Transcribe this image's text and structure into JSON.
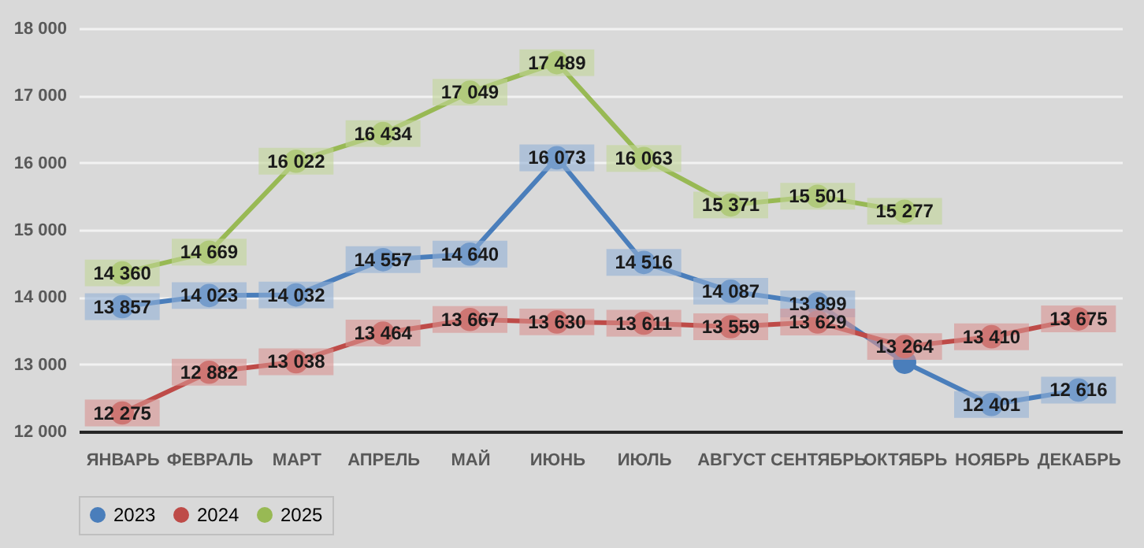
{
  "chart_data": {
    "type": "line",
    "categories": [
      "ЯНВАРЬ",
      "ФЕВРАЛЬ",
      "МАРТ",
      "АПРЕЛЬ",
      "МАЙ",
      "ИЮНЬ",
      "ИЮЛЬ",
      "АВГУСТ",
      "СЕНТЯБРЬ",
      "ОКТЯБРЬ",
      "НОЯБРЬ",
      "ДЕКАБРЬ"
    ],
    "series": [
      {
        "name": "2023",
        "color": "#4a7ebb",
        "values": [
          13857,
          14023,
          14032,
          14557,
          14640,
          16073,
          14516,
          14087,
          13899,
          13030,
          12401,
          12616
        ],
        "value_labels": [
          "13 857",
          "14 023",
          "14 032",
          "14 557",
          "14 640",
          "16 073",
          "14 516",
          "14 087",
          "13 899",
          null,
          "12 401",
          "12 616"
        ]
      },
      {
        "name": "2024",
        "color": "#be4b48",
        "values": [
          12275,
          12882,
          13038,
          13464,
          13667,
          13630,
          13611,
          13559,
          13629,
          13264,
          13410,
          13675
        ],
        "value_labels": [
          "12 275",
          "12 882",
          "13 038",
          "13 464",
          "13 667",
          "13 630",
          "13 611",
          "13 559",
          "13 629",
          "13 264",
          "13 410",
          "13 675"
        ]
      },
      {
        "name": "2025",
        "color": "#98b954",
        "values": [
          14360,
          14669,
          16022,
          16434,
          17049,
          17489,
          16063,
          15371,
          15501,
          15277,
          null,
          null
        ],
        "value_labels": [
          "14 360",
          "14 669",
          "16 022",
          "16 434",
          "17 049",
          "17 489",
          "16 063",
          "15 371",
          "15 501",
          "15 277",
          null,
          null
        ]
      }
    ],
    "ylim": [
      12000,
      18000
    ],
    "yticks": [
      {
        "value": 12000,
        "label": "12 000"
      },
      {
        "value": 13000,
        "label": "13 000"
      },
      {
        "value": 14000,
        "label": "14 000"
      },
      {
        "value": 15000,
        "label": "15 000"
      },
      {
        "value": 16000,
        "label": "16 000"
      },
      {
        "value": 17000,
        "label": "17 000"
      },
      {
        "value": 18000,
        "label": "18 000"
      }
    ],
    "grid": "y",
    "legend": "bottom",
    "marker": "circle",
    "line_style": "solid"
  }
}
